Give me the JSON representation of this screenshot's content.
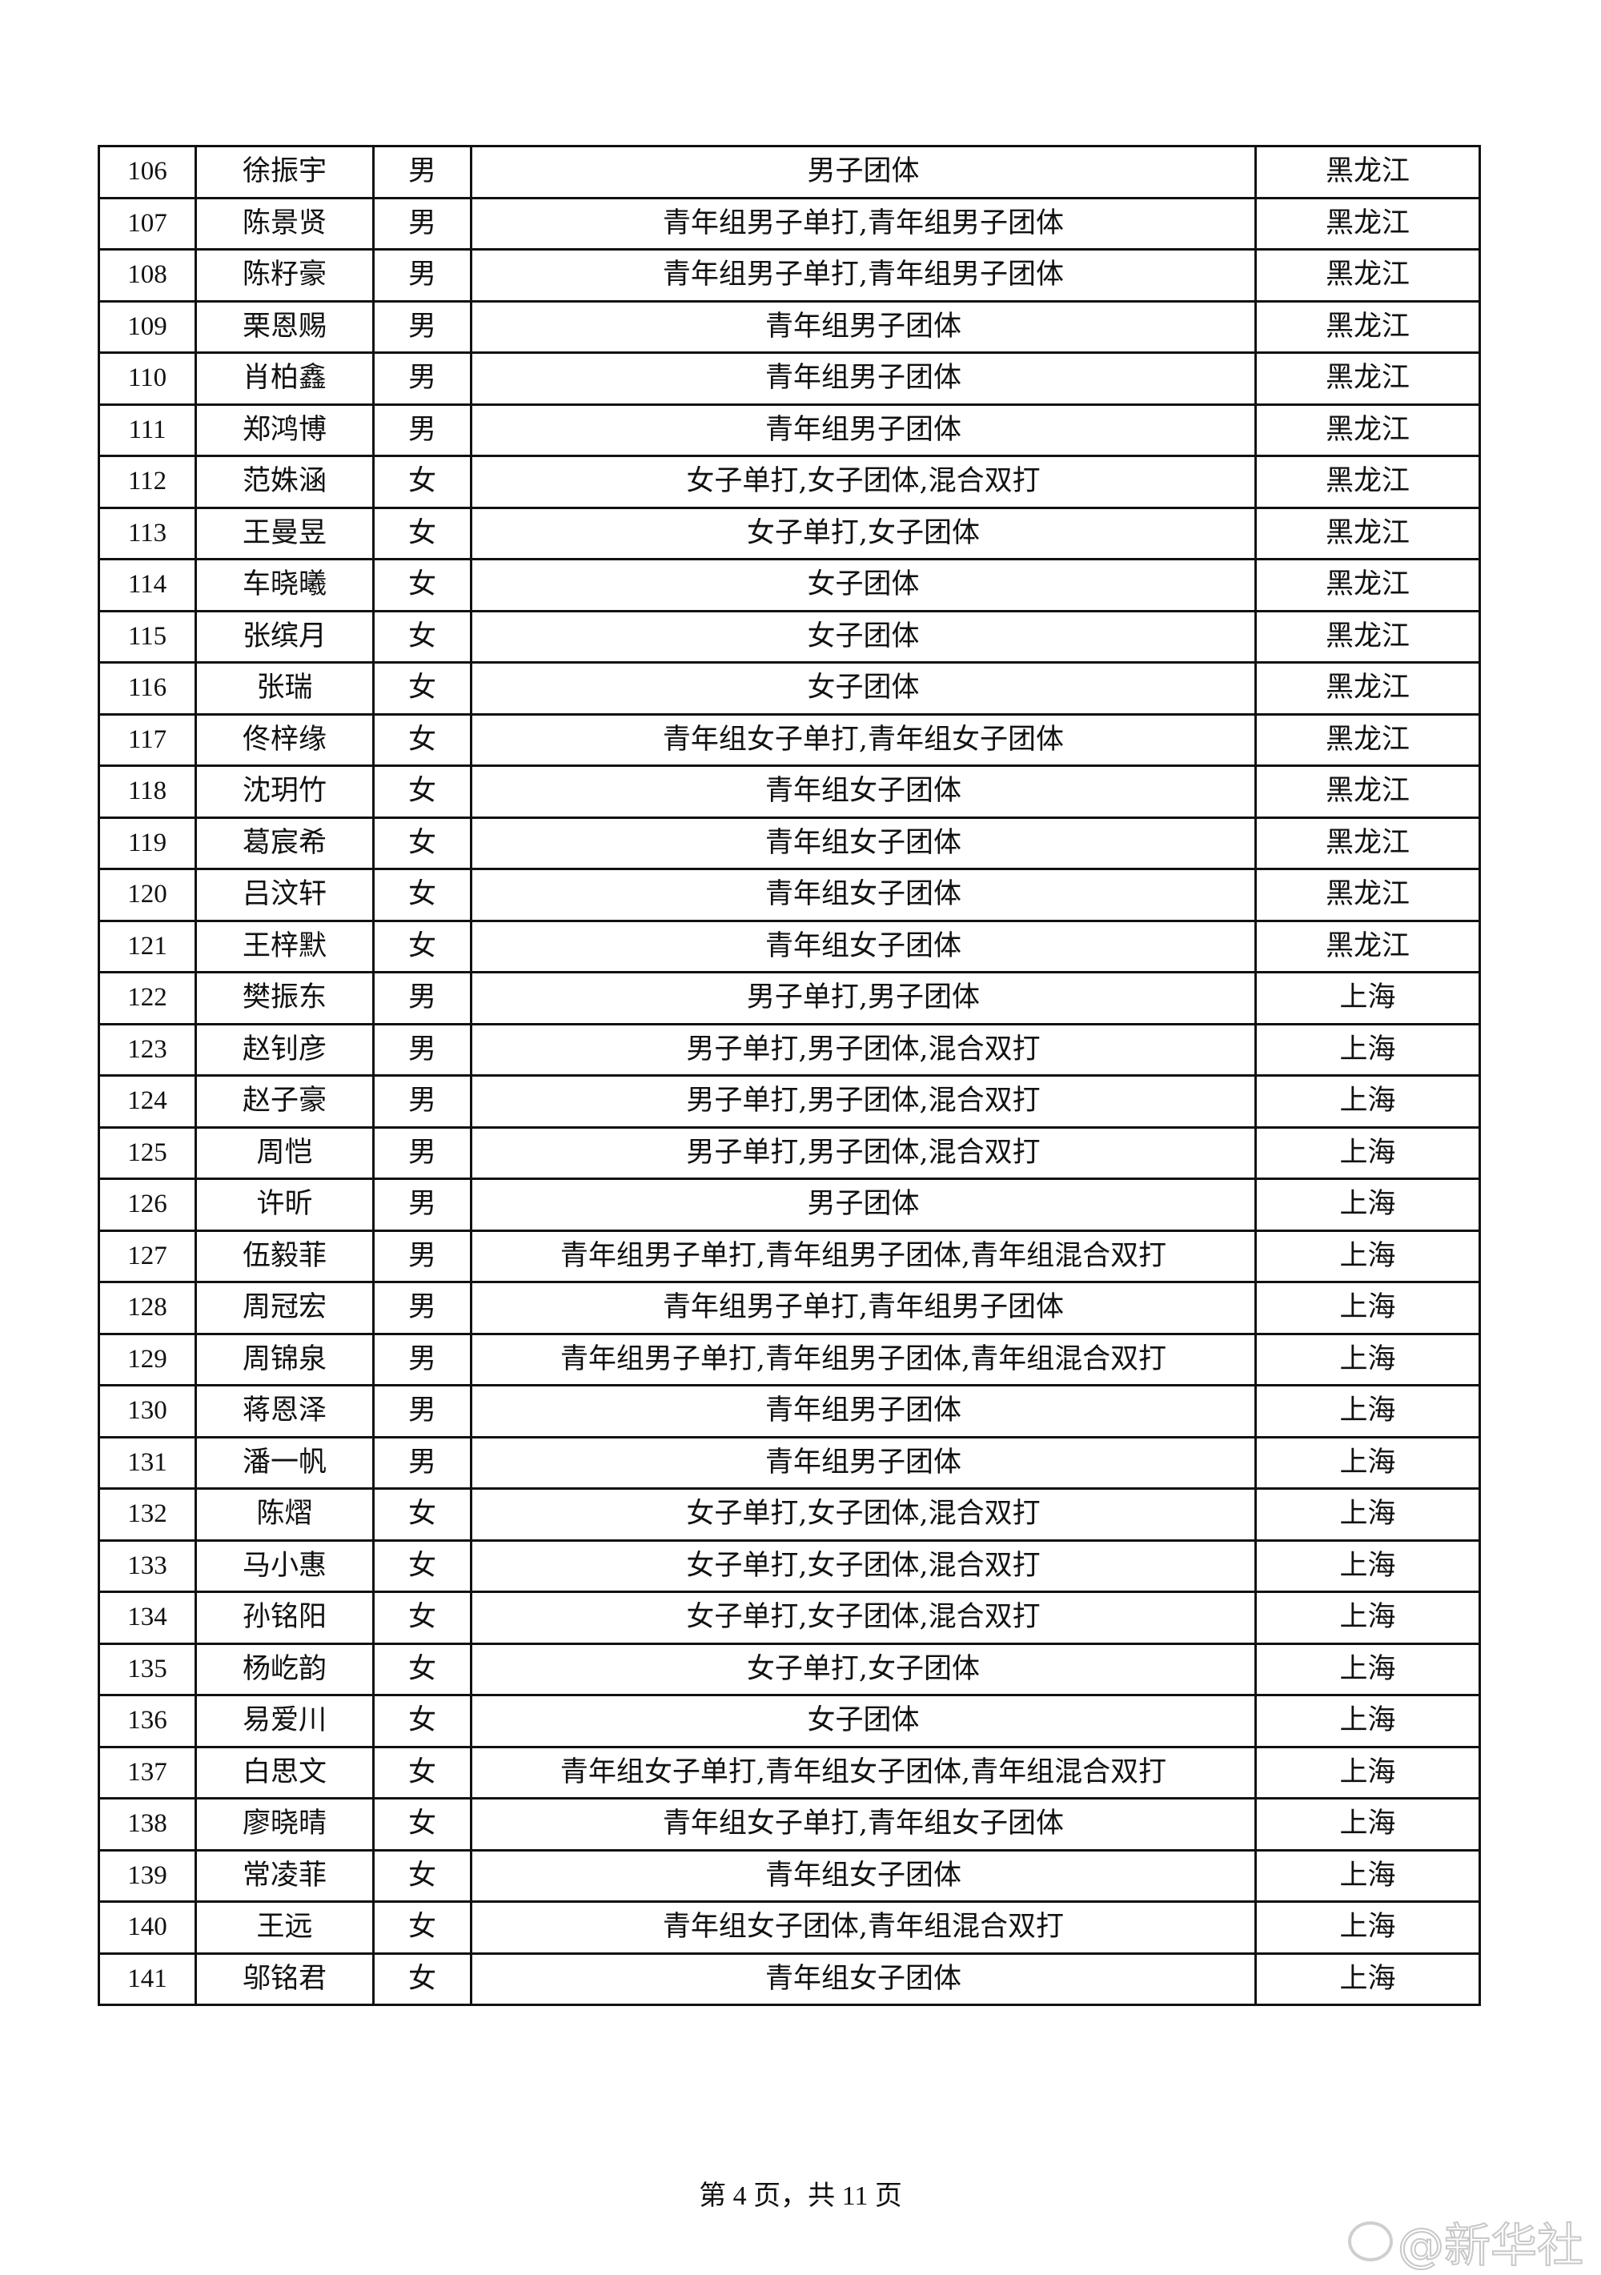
{
  "rows": [
    {
      "no": "106",
      "name": "徐振宇",
      "gender": "男",
      "events": "男子团体",
      "team": "黑龙江"
    },
    {
      "no": "107",
      "name": "陈景贤",
      "gender": "男",
      "events": "青年组男子单打,青年组男子团体",
      "team": "黑龙江"
    },
    {
      "no": "108",
      "name": "陈籽豪",
      "gender": "男",
      "events": "青年组男子单打,青年组男子团体",
      "team": "黑龙江"
    },
    {
      "no": "109",
      "name": "栗恩赐",
      "gender": "男",
      "events": "青年组男子团体",
      "team": "黑龙江"
    },
    {
      "no": "110",
      "name": "肖柏鑫",
      "gender": "男",
      "events": "青年组男子团体",
      "team": "黑龙江"
    },
    {
      "no": "111",
      "name": "郑鸿博",
      "gender": "男",
      "events": "青年组男子团体",
      "team": "黑龙江"
    },
    {
      "no": "112",
      "name": "范姝涵",
      "gender": "女",
      "events": "女子单打,女子团体,混合双打",
      "team": "黑龙江"
    },
    {
      "no": "113",
      "name": "王曼昱",
      "gender": "女",
      "events": "女子单打,女子团体",
      "team": "黑龙江"
    },
    {
      "no": "114",
      "name": "车晓曦",
      "gender": "女",
      "events": "女子团体",
      "team": "黑龙江"
    },
    {
      "no": "115",
      "name": "张缤月",
      "gender": "女",
      "events": "女子团体",
      "team": "黑龙江"
    },
    {
      "no": "116",
      "name": "张瑞",
      "gender": "女",
      "events": "女子团体",
      "team": "黑龙江"
    },
    {
      "no": "117",
      "name": "佟梓缘",
      "gender": "女",
      "events": "青年组女子单打,青年组女子团体",
      "team": "黑龙江"
    },
    {
      "no": "118",
      "name": "沈玥竹",
      "gender": "女",
      "events": "青年组女子团体",
      "team": "黑龙江"
    },
    {
      "no": "119",
      "name": "葛宸希",
      "gender": "女",
      "events": "青年组女子团体",
      "team": "黑龙江"
    },
    {
      "no": "120",
      "name": "吕汶轩",
      "gender": "女",
      "events": "青年组女子团体",
      "team": "黑龙江"
    },
    {
      "no": "121",
      "name": "王梓默",
      "gender": "女",
      "events": "青年组女子团体",
      "team": "黑龙江"
    },
    {
      "no": "122",
      "name": "樊振东",
      "gender": "男",
      "events": "男子单打,男子团体",
      "team": "上海"
    },
    {
      "no": "123",
      "name": "赵钊彦",
      "gender": "男",
      "events": "男子单打,男子团体,混合双打",
      "team": "上海"
    },
    {
      "no": "124",
      "name": "赵子豪",
      "gender": "男",
      "events": "男子单打,男子团体,混合双打",
      "team": "上海"
    },
    {
      "no": "125",
      "name": "周恺",
      "gender": "男",
      "events": "男子单打,男子团体,混合双打",
      "team": "上海"
    },
    {
      "no": "126",
      "name": "许昕",
      "gender": "男",
      "events": "男子团体",
      "team": "上海"
    },
    {
      "no": "127",
      "name": "伍毅菲",
      "gender": "男",
      "events": "青年组男子单打,青年组男子团体,青年组混合双打",
      "team": "上海"
    },
    {
      "no": "128",
      "name": "周冠宏",
      "gender": "男",
      "events": "青年组男子单打,青年组男子团体",
      "team": "上海"
    },
    {
      "no": "129",
      "name": "周锦泉",
      "gender": "男",
      "events": "青年组男子单打,青年组男子团体,青年组混合双打",
      "team": "上海"
    },
    {
      "no": "130",
      "name": "蒋恩泽",
      "gender": "男",
      "events": "青年组男子团体",
      "team": "上海"
    },
    {
      "no": "131",
      "name": "潘一帆",
      "gender": "男",
      "events": "青年组男子团体",
      "team": "上海"
    },
    {
      "no": "132",
      "name": "陈熠",
      "gender": "女",
      "events": "女子单打,女子团体,混合双打",
      "team": "上海"
    },
    {
      "no": "133",
      "name": "马小惠",
      "gender": "女",
      "events": "女子单打,女子团体,混合双打",
      "team": "上海"
    },
    {
      "no": "134",
      "name": "孙铭阳",
      "gender": "女",
      "events": "女子单打,女子团体,混合双打",
      "team": "上海"
    },
    {
      "no": "135",
      "name": "杨屹韵",
      "gender": "女",
      "events": "女子单打,女子团体",
      "team": "上海"
    },
    {
      "no": "136",
      "name": "易爱川",
      "gender": "女",
      "events": "女子团体",
      "team": "上海"
    },
    {
      "no": "137",
      "name": "白思文",
      "gender": "女",
      "events": "青年组女子单打,青年组女子团体,青年组混合双打",
      "team": "上海"
    },
    {
      "no": "138",
      "name": "廖晓晴",
      "gender": "女",
      "events": "青年组女子单打,青年组女子团体",
      "team": "上海"
    },
    {
      "no": "139",
      "name": "常凌菲",
      "gender": "女",
      "events": "青年组女子团体",
      "team": "上海"
    },
    {
      "no": "140",
      "name": "王远",
      "gender": "女",
      "events": "青年组女子团体,青年组混合双打",
      "team": "上海"
    },
    {
      "no": "141",
      "name": "邬铭君",
      "gender": "女",
      "events": "青年组女子团体",
      "team": "上海"
    }
  ],
  "footer": {
    "page_label": "第 4 页，共 11 页"
  },
  "watermark": {
    "text": "@新华社",
    "icon": "weibo-icon"
  }
}
